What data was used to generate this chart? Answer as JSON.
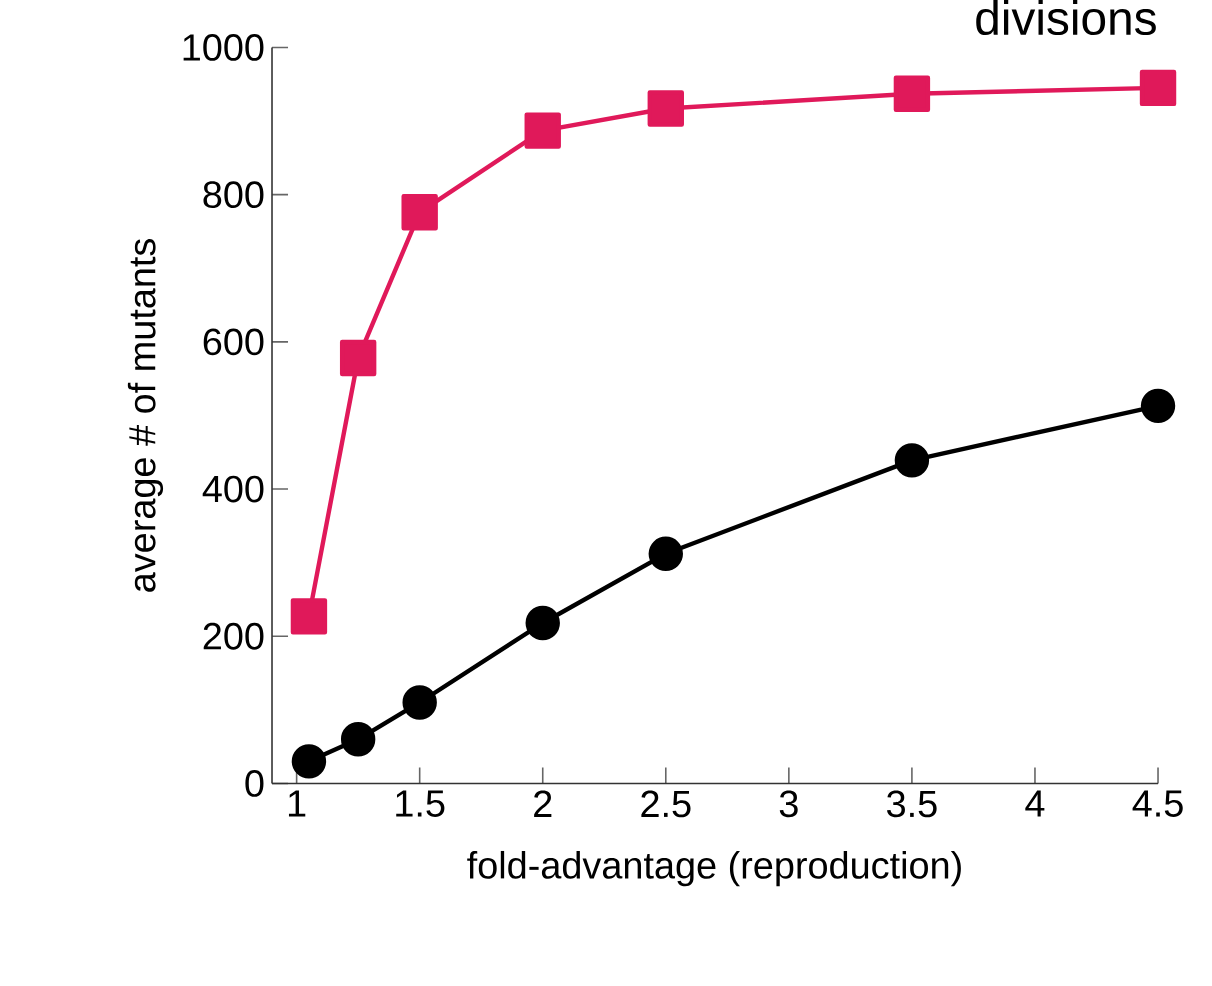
{
  "chart_data": {
    "type": "line",
    "xlabel": "fold-advantage (reproduction)",
    "ylabel": "average # of mutants",
    "annotations": [
      "divisions"
    ],
    "x": [
      1.05,
      1.25,
      1.5,
      2,
      2.5,
      3.5,
      4.5
    ],
    "series": [
      {
        "color": "#e0195a",
        "marker": "square",
        "values": [
          227,
          578,
          776,
          887,
          917,
          937,
          945
        ]
      },
      {
        "color": "#000000",
        "marker": "circle",
        "values": [
          30,
          60,
          110,
          218,
          312,
          439,
          513
        ]
      }
    ],
    "xlim": [
      0.9,
      4.5
    ],
    "ylim": [
      0,
      1000
    ],
    "xticks": [
      1,
      1.5,
      2,
      2.5,
      3,
      3.5,
      4,
      4.5
    ],
    "yticks": [
      0,
      200,
      400,
      600,
      800,
      1000
    ],
    "line_style": "solid"
  }
}
